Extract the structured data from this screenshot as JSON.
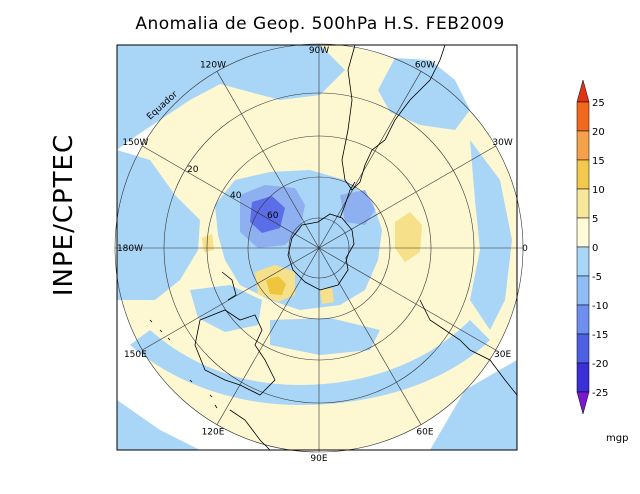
{
  "title": "Anomalia de Geop. 500hPa H.S. FEB2009",
  "side_label": "INPE/CPTEC",
  "longitudes": [
    {
      "label": "90W",
      "angle": -90
    },
    {
      "label": "60W",
      "angle": -60
    },
    {
      "label": "30W",
      "angle": -30
    },
    {
      "label": "0",
      "angle": 0
    },
    {
      "label": "30E",
      "angle": 30
    },
    {
      "label": "60E",
      "angle": 60
    },
    {
      "label": "90E",
      "angle": 90
    },
    {
      "label": "120E",
      "angle": 120
    },
    {
      "label": "150E",
      "angle": 150
    },
    {
      "label": "180W",
      "angle": 180
    },
    {
      "label": "150W",
      "angle": 210
    },
    {
      "label": "120W",
      "angle": 240
    }
  ],
  "latitudes": [
    "20",
    "40",
    "60"
  ],
  "equator_label": "Equador",
  "colorbar": {
    "unit": "mgp",
    "levels": [
      "25",
      "20",
      "15",
      "10",
      "5",
      "0",
      "-5",
      "-10",
      "-15",
      "-20",
      "-25"
    ],
    "colors": [
      "#f2681d",
      "#f5a14a",
      "#f2c94c",
      "#f7e79a",
      "#fffbd8",
      "#a9d5f7",
      "#8fbcf2",
      "#6e8ff0",
      "#4e5fe6",
      "#3a2fd9"
    ],
    "top_arrow_color": "#e23414",
    "bottom_arrow_color": "#7a19cf"
  },
  "colors": {
    "positive_light": "#fdf7d2",
    "positive_mid": "#f6e08a",
    "positive_strong": "#efc53e",
    "negative_light": "#a9d5f7",
    "negative_mid": "#8fb0f0",
    "negative_strong": "#5b6ee8",
    "coast": "#000000"
  }
}
